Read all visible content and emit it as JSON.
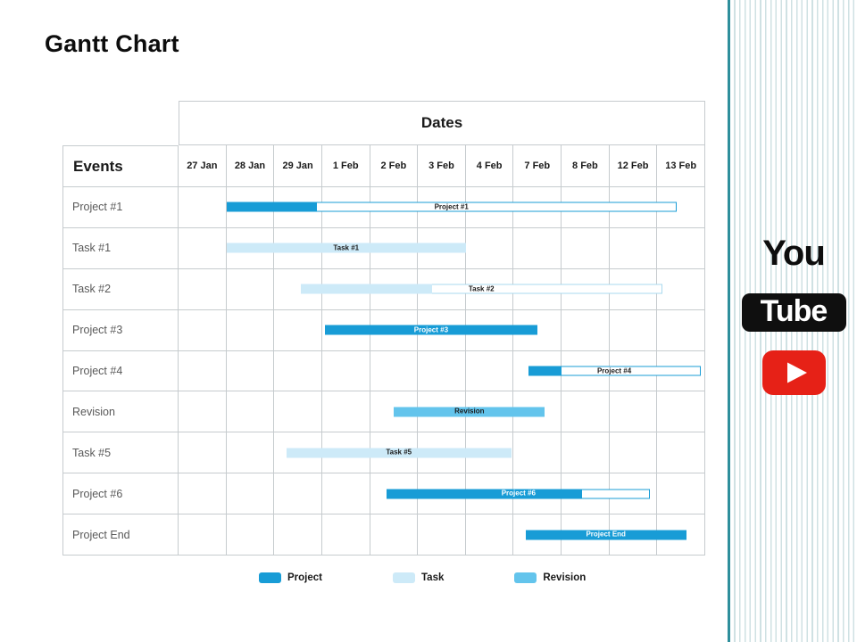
{
  "slide": {
    "title": "Gantt Chart"
  },
  "branding": {
    "wordmark_top": "You",
    "wordmark_badge": "Tube",
    "play_icon": "youtube-play-icon"
  },
  "colors": {
    "project": "#189cd6",
    "task": "#cdeaf8",
    "task_border": "#a9d9ef",
    "revision": "#63c4ec",
    "grid_line": "#c6cbce",
    "row_label_text": "#595959",
    "stripe_line": "#cfe1e3",
    "stripe_edge": "#2e8f9c",
    "youtube_red": "#e62117",
    "badge_black": "#0f0f0f"
  },
  "chart_data": {
    "type": "bar",
    "variant": "gantt",
    "title": "Gantt Chart",
    "column_group_header": "Dates",
    "row_group_header": "Events",
    "columns": [
      "27 Jan",
      "28 Jan",
      "29 Jan",
      "1 Feb",
      "2 Feb",
      "3 Feb",
      "4 Feb",
      "7 Feb",
      "8 Feb",
      "12 Feb",
      "13 Feb"
    ],
    "units_note": "start/filled_until/end are in day-column units; 0 = left edge of 27 Jan column, 11 = right edge of 13 Feb column",
    "grid": true,
    "legend_position": "bottom",
    "legend": [
      {
        "label": "Project",
        "color": "#189cd6"
      },
      {
        "label": "Task",
        "color": "#cdeaf8"
      },
      {
        "label": "Revision",
        "color": "#63c4ec"
      }
    ],
    "tasks": [
      {
        "name": "Project #1",
        "bar_label": "Project #1",
        "category": "project",
        "start": 1.0,
        "filled_until": 2.9,
        "end": 10.4,
        "label_color": "#1a1a1a"
      },
      {
        "name": "Task #1",
        "bar_label": "Task #1",
        "category": "task",
        "start": 1.0,
        "filled_until": 6.0,
        "end": 6.0,
        "label_color": "#1a1a1a"
      },
      {
        "name": "Task #2",
        "bar_label": "Task #2",
        "category": "task",
        "start": 2.55,
        "filled_until": 5.3,
        "end": 10.1,
        "label_color": "#1a1a1a"
      },
      {
        "name": "Project #3",
        "bar_label": "Project #3",
        "category": "project",
        "start": 3.05,
        "filled_until": 7.5,
        "end": 7.5,
        "label_color": "#ffffff"
      },
      {
        "name": "Project #4",
        "bar_label": "Project #4",
        "category": "project",
        "start": 7.3,
        "filled_until": 8.0,
        "end": 10.9,
        "label_color": "#1a1a1a"
      },
      {
        "name": "Revision",
        "bar_label": "Revision",
        "category": "revision",
        "start": 4.5,
        "filled_until": 7.65,
        "end": 7.65,
        "label_color": "#1a1a1a"
      },
      {
        "name": "Task #5",
        "bar_label": "Task #5",
        "category": "task",
        "start": 2.25,
        "filled_until": 6.95,
        "end": 6.95,
        "label_color": "#1a1a1a"
      },
      {
        "name": "Project #6",
        "bar_label": "Project #6",
        "category": "project",
        "start": 4.35,
        "filled_until": 8.45,
        "end": 9.85,
        "label_color": "#ffffff"
      },
      {
        "name": "Project End",
        "bar_label": "Project End",
        "category": "project",
        "start": 7.25,
        "filled_until": 10.6,
        "end": 10.6,
        "label_color": "#ffffff"
      }
    ]
  }
}
